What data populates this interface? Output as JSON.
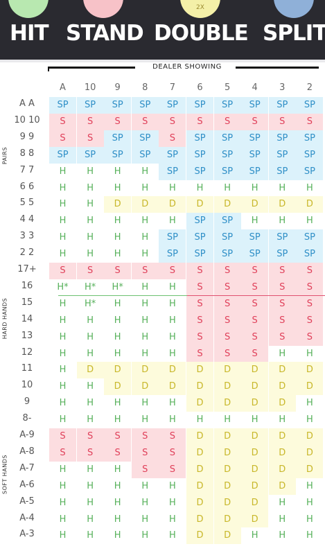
{
  "actions": {
    "hit": "HIT",
    "stand": "STAND",
    "double": "DOUBLE",
    "split": "SPLIT",
    "double_circle_text": "2X"
  },
  "chart_title": "DEALER SHOWING",
  "dealer_columns": [
    "A",
    "10",
    "9",
    "8",
    "7",
    "6",
    "5",
    "4",
    "3",
    "2"
  ],
  "sections": {
    "pairs": "PAIRS",
    "hard": "HARD HANDS",
    "soft": "SOFT HANDS"
  },
  "colors": {
    "stand": "#fcdde0",
    "split": "#dcf2fb",
    "double": "#fdfbdc",
    "hit": "#ffffff"
  },
  "rows": [
    {
      "label": "A A",
      "cells": [
        "SP",
        "SP",
        "SP",
        "SP",
        "SP",
        "SP",
        "SP",
        "SP",
        "SP",
        "SP"
      ]
    },
    {
      "label": "10 10",
      "cells": [
        "S",
        "S",
        "S",
        "S",
        "S",
        "S",
        "S",
        "S",
        "S",
        "S"
      ]
    },
    {
      "label": "9 9",
      "cells": [
        "S",
        "S",
        "SP",
        "SP",
        "S",
        "SP",
        "SP",
        "SP",
        "SP",
        "SP"
      ]
    },
    {
      "label": "8 8",
      "cells": [
        "SP",
        "SP",
        "SP",
        "SP",
        "SP",
        "SP",
        "SP",
        "SP",
        "SP",
        "SP"
      ]
    },
    {
      "label": "7 7",
      "cells": [
        "H",
        "H",
        "H",
        "H",
        "SP",
        "SP",
        "SP",
        "SP",
        "SP",
        "SP"
      ]
    },
    {
      "label": "6 6",
      "cells": [
        "H",
        "H",
        "H",
        "H",
        "H",
        "H",
        "H",
        "H",
        "H",
        "H"
      ]
    },
    {
      "label": "5 5",
      "cells": [
        "H",
        "H",
        "D",
        "D",
        "D",
        "D",
        "D",
        "D",
        "D",
        "D"
      ]
    },
    {
      "label": "4 4",
      "cells": [
        "H",
        "H",
        "H",
        "H",
        "H",
        "SP",
        "SP",
        "H",
        "H",
        "H"
      ]
    },
    {
      "label": "3 3",
      "cells": [
        "H",
        "H",
        "H",
        "H",
        "SP",
        "SP",
        "SP",
        "SP",
        "SP",
        "SP"
      ]
    },
    {
      "label": "2 2",
      "cells": [
        "H",
        "H",
        "H",
        "H",
        "SP",
        "SP",
        "SP",
        "SP",
        "SP",
        "SP"
      ]
    },
    {
      "label": "17+",
      "cells": [
        "S",
        "S",
        "S",
        "S",
        "S",
        "S",
        "S",
        "S",
        "S",
        "S"
      ]
    },
    {
      "label": "16",
      "cells": [
        "H*",
        "H*",
        "H*",
        "H",
        "H",
        "S",
        "S",
        "S",
        "S",
        "S"
      ]
    },
    {
      "label": "15",
      "cells": [
        "H",
        "H*",
        "H",
        "H",
        "H",
        "S",
        "S",
        "S",
        "S",
        "S"
      ]
    },
    {
      "label": "14",
      "cells": [
        "H",
        "H",
        "H",
        "H",
        "H",
        "S",
        "S",
        "S",
        "S",
        "S"
      ]
    },
    {
      "label": "13",
      "cells": [
        "H",
        "H",
        "H",
        "H",
        "H",
        "S",
        "S",
        "S",
        "S",
        "S"
      ]
    },
    {
      "label": "12",
      "cells": [
        "H",
        "H",
        "H",
        "H",
        "H",
        "S",
        "S",
        "S",
        "H",
        "H"
      ]
    },
    {
      "label": "11",
      "cells": [
        "H",
        "D",
        "D",
        "D",
        "D",
        "D",
        "D",
        "D",
        "D",
        "D"
      ]
    },
    {
      "label": "10",
      "cells": [
        "H",
        "H",
        "D",
        "D",
        "D",
        "D",
        "D",
        "D",
        "D",
        "D"
      ]
    },
    {
      "label": "9",
      "cells": [
        "H",
        "H",
        "H",
        "H",
        "H",
        "D",
        "D",
        "D",
        "D",
        "H"
      ]
    },
    {
      "label": "8-",
      "cells": [
        "H",
        "H",
        "H",
        "H",
        "H",
        "H",
        "H",
        "H",
        "H",
        "H"
      ]
    },
    {
      "label": "A-9",
      "cells": [
        "S",
        "S",
        "S",
        "S",
        "S",
        "D",
        "D",
        "D",
        "D",
        "D"
      ]
    },
    {
      "label": "A-8",
      "cells": [
        "S",
        "S",
        "S",
        "S",
        "S",
        "D",
        "D",
        "D",
        "D",
        "D"
      ]
    },
    {
      "label": "A-7",
      "cells": [
        "H",
        "H",
        "H",
        "S",
        "S",
        "D",
        "D",
        "D",
        "D",
        "D"
      ]
    },
    {
      "label": "A-6",
      "cells": [
        "H",
        "H",
        "H",
        "H",
        "H",
        "D",
        "D",
        "D",
        "D",
        "H"
      ]
    },
    {
      "label": "A-5",
      "cells": [
        "H",
        "H",
        "H",
        "H",
        "H",
        "D",
        "D",
        "D",
        "H",
        "H"
      ]
    },
    {
      "label": "A-4",
      "cells": [
        "H",
        "H",
        "H",
        "H",
        "H",
        "D",
        "D",
        "D",
        "H",
        "H"
      ]
    },
    {
      "label": "A-3",
      "cells": [
        "H",
        "H",
        "H",
        "H",
        "H",
        "D",
        "D",
        "H",
        "H",
        "H"
      ]
    }
  ]
}
